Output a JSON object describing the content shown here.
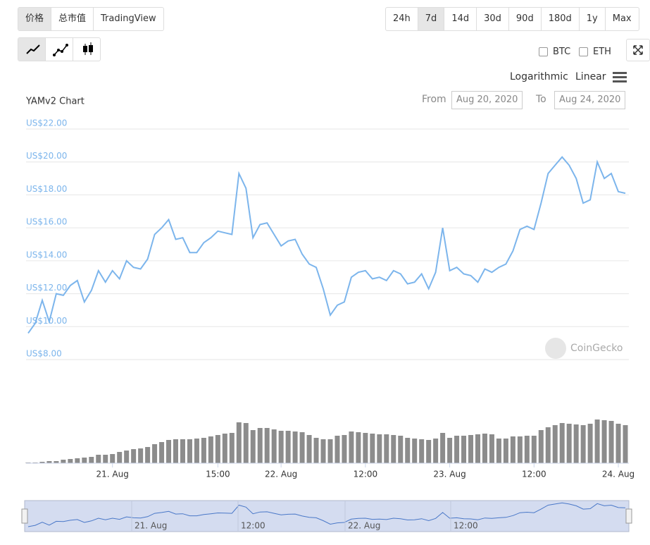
{
  "ui": {
    "tabs": [
      "价格",
      "总市值",
      "TradingView"
    ],
    "ranges": [
      "24h",
      "7d",
      "14d",
      "30d",
      "90d",
      "180d",
      "1y",
      "Max"
    ],
    "compare": [
      "BTC",
      "ETH"
    ],
    "scales": [
      "Logarithmic",
      "Linear"
    ],
    "from_label": "From",
    "from": "Aug 20, 2020",
    "to_label": "To",
    "to": "Aug 24, 2020",
    "watermark": "CoinGecko"
  },
  "chart_data": {
    "type": "line",
    "title": "YAMv2 Chart",
    "color": "#7cb5ec",
    "categories": [
      null,
      null,
      null,
      null,
      null,
      null,
      null,
      null,
      null,
      null,
      null,
      null,
      "21. Aug",
      null,
      null,
      null,
      null,
      null,
      null,
      null,
      null,
      null,
      null,
      null,
      null,
      null,
      null,
      "15:00",
      null,
      null,
      null,
      null,
      null,
      null,
      null,
      null,
      "22. Aug",
      null,
      null,
      null,
      null,
      null,
      null,
      null,
      null,
      null,
      null,
      null,
      "12:00",
      null,
      null,
      null,
      null,
      null,
      null,
      null,
      null,
      null,
      null,
      null,
      "23. Aug",
      null,
      null,
      null,
      null,
      null,
      null,
      null,
      null,
      null,
      null,
      null,
      "12:00",
      null,
      null,
      null,
      null,
      null,
      null,
      null,
      null,
      null,
      null,
      null,
      "24. Aug",
      null
    ],
    "values": [
      9.6,
      10.2,
      11.6,
      10.3,
      12.0,
      11.9,
      12.5,
      12.8,
      11.5,
      12.2,
      13.4,
      12.7,
      13.4,
      12.9,
      14.0,
      13.6,
      13.5,
      14.1,
      15.6,
      16.0,
      16.5,
      15.3,
      15.4,
      14.5,
      14.5,
      15.1,
      15.4,
      15.8,
      15.7,
      15.6,
      19.3,
      18.4,
      15.4,
      16.2,
      16.3,
      15.6,
      14.9,
      15.2,
      15.3,
      14.4,
      13.8,
      13.6,
      12.3,
      10.7,
      11.3,
      11.5,
      13.0,
      13.3,
      13.4,
      12.9,
      13.0,
      12.8,
      13.4,
      13.2,
      12.6,
      12.7,
      13.2,
      12.3,
      13.3,
      16.0,
      13.4,
      13.6,
      13.2,
      13.1,
      12.7,
      13.5,
      13.3,
      13.6,
      13.8,
      14.6,
      15.9,
      16.1,
      15.9,
      17.5,
      19.3,
      19.8,
      20.3,
      19.8,
      19.0,
      17.5,
      17.7,
      20.0,
      19.0,
      19.3,
      18.2,
      18.1
    ],
    "volume": {
      "color": "#8c8c8c",
      "values": [
        1,
        1,
        2,
        3,
        3,
        5,
        6,
        7,
        8,
        9,
        12,
        12,
        13,
        16,
        18,
        20,
        21,
        23,
        27,
        30,
        33,
        34,
        34,
        34,
        35,
        36,
        38,
        40,
        42,
        43,
        58,
        57,
        47,
        50,
        50,
        48,
        46,
        46,
        45,
        44,
        40,
        36,
        34,
        34,
        39,
        40,
        45,
        44,
        43,
        42,
        41,
        41,
        40,
        39,
        36,
        35,
        34,
        33,
        35,
        43,
        36,
        39,
        39,
        40,
        41,
        42,
        41,
        35,
        35,
        38,
        38,
        39,
        39,
        47,
        51,
        54,
        57,
        56,
        55,
        54,
        56,
        62,
        61,
        60,
        56,
        54
      ]
    },
    "ylim": [
      8,
      22
    ],
    "yticks": [
      {
        "value": 8,
        "label": "US$8.00"
      },
      {
        "value": 10,
        "label": "US$10.00"
      },
      {
        "value": 12,
        "label": "US$12.00"
      },
      {
        "value": 14,
        "label": "US$14.00"
      },
      {
        "value": 16,
        "label": "US$16.00"
      },
      {
        "value": 18,
        "label": "US$18.00"
      },
      {
        "value": 20,
        "label": "US$20.00"
      },
      {
        "value": 22,
        "label": "US$22.00"
      }
    ],
    "grid": true,
    "navigator": {
      "labels": [
        "21. Aug",
        "12:00",
        "22. Aug",
        "12:00"
      ]
    }
  }
}
